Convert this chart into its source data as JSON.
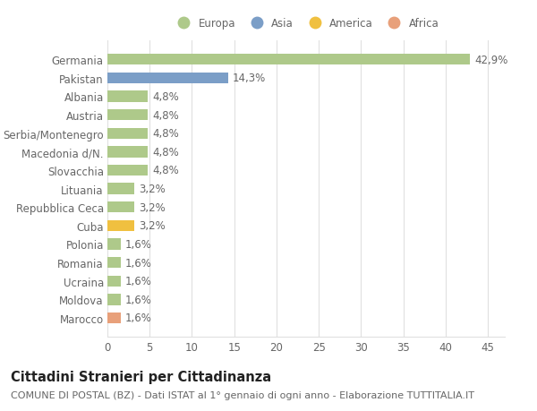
{
  "countries": [
    "Germania",
    "Pakistan",
    "Albania",
    "Austria",
    "Serbia/Montenegro",
    "Macedonia d/N.",
    "Slovacchia",
    "Lituania",
    "Repubblica Ceca",
    "Cuba",
    "Polonia",
    "Romania",
    "Ucraina",
    "Moldova",
    "Marocco"
  ],
  "values": [
    42.9,
    14.3,
    4.8,
    4.8,
    4.8,
    4.8,
    4.8,
    3.2,
    3.2,
    3.2,
    1.6,
    1.6,
    1.6,
    1.6,
    1.6
  ],
  "labels": [
    "42,9%",
    "14,3%",
    "4,8%",
    "4,8%",
    "4,8%",
    "4,8%",
    "4,8%",
    "3,2%",
    "3,2%",
    "3,2%",
    "1,6%",
    "1,6%",
    "1,6%",
    "1,6%",
    "1,6%"
  ],
  "continents": [
    "Europa",
    "Asia",
    "Europa",
    "Europa",
    "Europa",
    "Europa",
    "Europa",
    "Europa",
    "Europa",
    "America",
    "Europa",
    "Europa",
    "Europa",
    "Europa",
    "Africa"
  ],
  "colors": {
    "Europa": "#aec98a",
    "Asia": "#7b9ec7",
    "America": "#f0c040",
    "Africa": "#e8a07a"
  },
  "legend_order": [
    "Europa",
    "Asia",
    "America",
    "Africa"
  ],
  "title": "Cittadini Stranieri per Cittadinanza",
  "subtitle": "COMUNE DI POSTAL (BZ) - Dati ISTAT al 1° gennaio di ogni anno - Elaborazione TUTTITALIA.IT",
  "xlim": [
    0,
    47
  ],
  "xticks": [
    0,
    5,
    10,
    15,
    20,
    25,
    30,
    35,
    40,
    45
  ],
  "background_color": "#ffffff",
  "grid_color": "#e0e0e0",
  "bar_height": 0.6,
  "label_fontsize": 8.5,
  "tick_fontsize": 8.5,
  "title_fontsize": 10.5,
  "subtitle_fontsize": 8
}
